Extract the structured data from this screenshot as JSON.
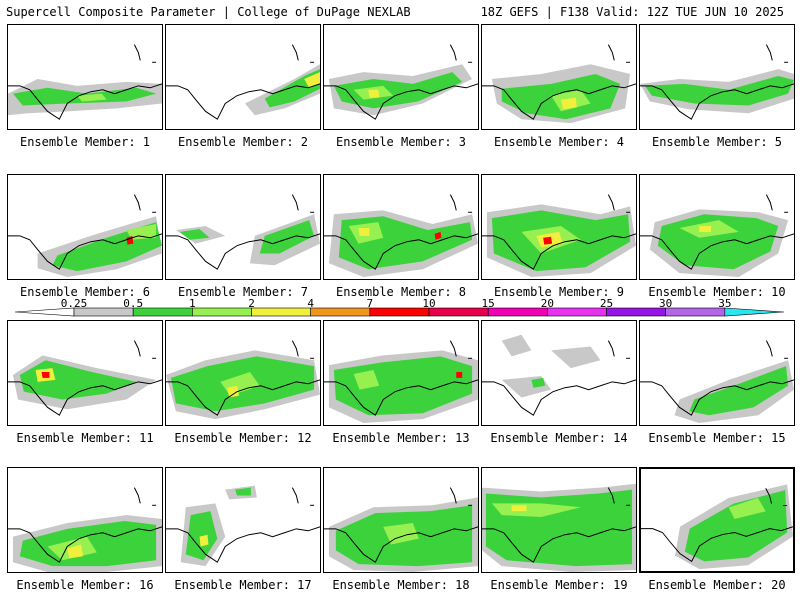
{
  "header": {
    "left": "Supercell Composite Parameter | College of DuPage NEXLAB",
    "right": "18Z GEFS | F138 Valid: 12Z TUE JUN 10 2025"
  },
  "panel_label_prefix": "Ensemble Member: ",
  "members": [
    {
      "n": 1,
      "label": "Ensemble Member: 1"
    },
    {
      "n": 2,
      "label": "Ensemble Member: 2"
    },
    {
      "n": 3,
      "label": "Ensemble Member: 3"
    },
    {
      "n": 4,
      "label": "Ensemble Member: 4"
    },
    {
      "n": 5,
      "label": "Ensemble Member: 5"
    },
    {
      "n": 6,
      "label": "Ensemble Member: 6"
    },
    {
      "n": 7,
      "label": "Ensemble Member: 7"
    },
    {
      "n": 8,
      "label": "Ensemble Member: 8"
    },
    {
      "n": 9,
      "label": "Ensemble Member: 9"
    },
    {
      "n": 10,
      "label": "Ensemble Member: 10"
    },
    {
      "n": 11,
      "label": "Ensemble Member: 11"
    },
    {
      "n": 12,
      "label": "Ensemble Member: 12"
    },
    {
      "n": 13,
      "label": "Ensemble Member: 13"
    },
    {
      "n": 14,
      "label": "Ensemble Member: 14"
    },
    {
      "n": 15,
      "label": "Ensemble Member: 15"
    },
    {
      "n": 16,
      "label": "Ensemble Member: 16"
    },
    {
      "n": 17,
      "label": "Ensemble Member: 17"
    },
    {
      "n": 18,
      "label": "Ensemble Member: 18"
    },
    {
      "n": 19,
      "label": "Ensemble Member: 19"
    },
    {
      "n": 20,
      "label": "Ensemble Member: 20"
    }
  ],
  "selected_member": 20,
  "colorbar": {
    "ticks": [
      "0.25",
      "0.5",
      "1",
      "2",
      "4",
      "7",
      "10",
      "15",
      "20",
      "25",
      "30",
      "35"
    ],
    "colors": [
      "#c8c8c8",
      "#3cd23c",
      "#96f050",
      "#f0f03c",
      "#f0961e",
      "#ff0000",
      "#e6004b",
      "#f000b4",
      "#e632f0",
      "#9614e6",
      "#b464e6",
      "#28e6f0"
    ],
    "legend": [
      {
        "label": "0.25",
        "color": "#c8c8c8"
      },
      {
        "label": "0.5",
        "color": "#3cd23c"
      },
      {
        "label": "1",
        "color": "#96f050"
      },
      {
        "label": "2",
        "color": "#f0f03c"
      },
      {
        "label": "4",
        "color": "#f0961e"
      },
      {
        "label": "7",
        "color": "#ff0000"
      },
      {
        "label": "10",
        "color": "#e6004b"
      },
      {
        "label": "15",
        "color": "#f000b4"
      },
      {
        "label": "20",
        "color": "#e632f0"
      },
      {
        "label": "25",
        "color": "#9614e6"
      },
      {
        "label": "30",
        "color": "#b464e6"
      },
      {
        "label": "35",
        "color": "#28e6f0"
      }
    ]
  },
  "fill_colors": {
    "gray": "#c8c8c8",
    "green": "#3cd23c",
    "light_green": "#96f050",
    "yellow": "#f0f03c",
    "orange": "#f0961e",
    "red": "#ff0000",
    "magenta": "#e6004b"
  }
}
